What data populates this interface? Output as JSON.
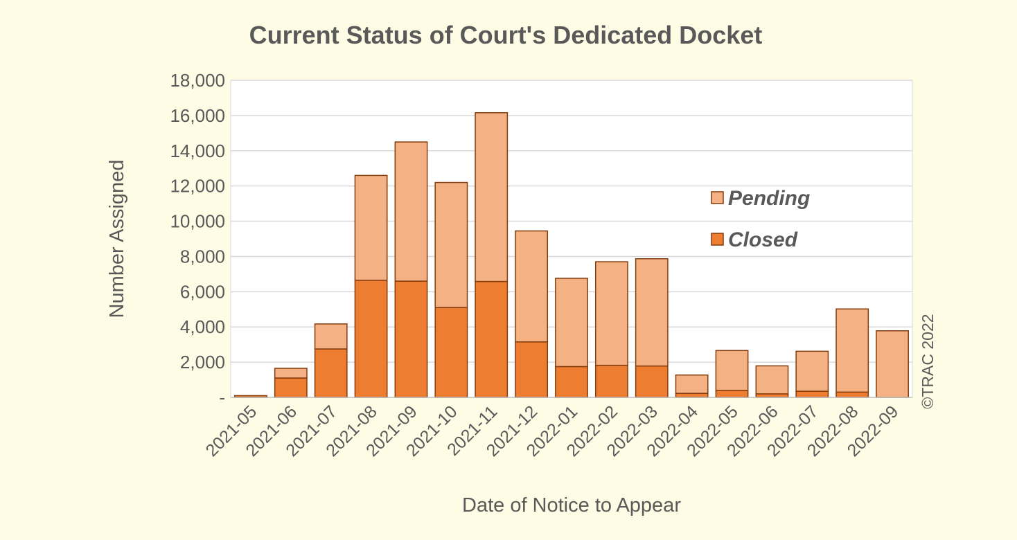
{
  "chart_data": {
    "type": "bar",
    "stacked": true,
    "title": "Current Status of Court's Dedicated Docket",
    "xlabel": "Date of Notice to Appear",
    "ylabel": "Number Assigned",
    "ylim": [
      0,
      18000
    ],
    "yticks": [
      0,
      2000,
      4000,
      6000,
      8000,
      10000,
      12000,
      14000,
      16000,
      18000
    ],
    "ytick_labels": [
      "-",
      "2,000",
      "4,000",
      "6,000",
      "8,000",
      "10,000",
      "12,000",
      "14,000",
      "16,000",
      "18,000"
    ],
    "grid": true,
    "legend_position": "right-center",
    "categories": [
      "2021-05",
      "2021-06",
      "2021-07",
      "2021-08",
      "2021-09",
      "2021-10",
      "2021-11",
      "2021-12",
      "2022-01",
      "2022-02",
      "2022-03",
      "2022-04",
      "2022-05",
      "2022-06",
      "2022-07",
      "2022-08",
      "2022-09"
    ],
    "series": [
      {
        "name": "Closed",
        "color": "#ed7d31",
        "values": [
          100,
          1100,
          2750,
          6650,
          6600,
          5100,
          6580,
          3150,
          1750,
          1820,
          1780,
          230,
          400,
          200,
          350,
          300,
          0
        ]
      },
      {
        "name": "Pending",
        "color": "#f4b183",
        "values": [
          0,
          550,
          1420,
          5950,
          7900,
          7100,
          9580,
          6300,
          5010,
          5880,
          6090,
          1040,
          2260,
          1590,
          2270,
          4720,
          3780
        ]
      }
    ],
    "credit": "©TRAC 2022"
  }
}
